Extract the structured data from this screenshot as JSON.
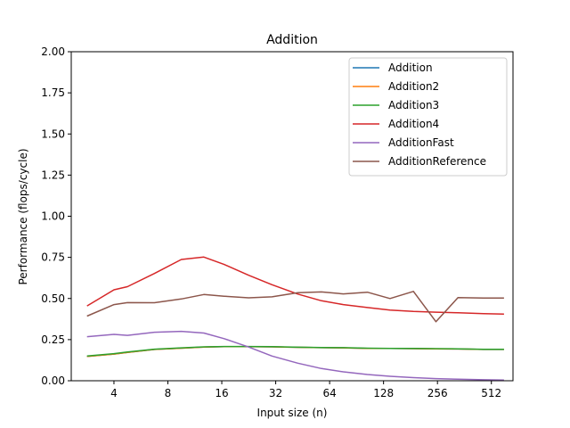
{
  "chart_data": {
    "type": "line",
    "title": "Addition",
    "xlabel": "Input size (n)",
    "ylabel": "Performance (flops/cycle)",
    "x_scale": "log2",
    "xlim": [
      2.31,
      676
    ],
    "ylim": [
      0,
      2.0
    ],
    "x_ticks": [
      4,
      8,
      16,
      32,
      64,
      128,
      256,
      512
    ],
    "x_tick_labels": [
      "4",
      "8",
      "16",
      "32",
      "64",
      "128",
      "256",
      "512"
    ],
    "y_ticks": [
      0.0,
      0.25,
      0.5,
      0.75,
      1.0,
      1.25,
      1.5,
      1.75,
      2.0
    ],
    "y_tick_labels": [
      "0.00",
      "0.25",
      "0.50",
      "0.75",
      "1.00",
      "1.25",
      "1.50",
      "1.75",
      "2.00"
    ],
    "grid": false,
    "legend_position": "top-right",
    "x": [
      2.83,
      4,
      4.76,
      6.73,
      9.51,
      12.7,
      16.5,
      22.6,
      30.5,
      42.5,
      57.6,
      76.3,
      104,
      139,
      188,
      251,
      333,
      463,
      602
    ],
    "series": [
      {
        "name": "Addition",
        "color": "#1f77b4",
        "values": [
          0.148,
          0.162,
          0.172,
          0.19,
          0.198,
          0.205,
          0.207,
          0.207,
          0.206,
          0.203,
          0.201,
          0.2,
          0.197,
          0.196,
          0.195,
          0.194,
          0.193,
          0.19,
          0.19
        ]
      },
      {
        "name": "Addition2",
        "color": "#ff7f0e",
        "values": [
          0.148,
          0.162,
          0.172,
          0.19,
          0.198,
          0.205,
          0.207,
          0.207,
          0.206,
          0.203,
          0.201,
          0.2,
          0.197,
          0.196,
          0.195,
          0.194,
          0.193,
          0.19,
          0.19
        ]
      },
      {
        "name": "Addition3",
        "color": "#2ca02c",
        "values": [
          0.15,
          0.165,
          0.175,
          0.192,
          0.2,
          0.206,
          0.208,
          0.208,
          0.207,
          0.204,
          0.202,
          0.201,
          0.198,
          0.197,
          0.196,
          0.195,
          0.194,
          0.191,
          0.191
        ]
      },
      {
        "name": "Addition4",
        "color": "#d62728",
        "values": [
          0.455,
          0.553,
          0.572,
          0.652,
          0.737,
          0.752,
          0.707,
          0.641,
          0.584,
          0.527,
          0.486,
          0.463,
          0.445,
          0.429,
          0.421,
          0.417,
          0.413,
          0.408,
          0.405
        ]
      },
      {
        "name": "AdditionFast",
        "color": "#9467bd",
        "values": [
          0.268,
          0.282,
          0.276,
          0.295,
          0.3,
          0.29,
          0.256,
          0.205,
          0.15,
          0.107,
          0.074,
          0.054,
          0.038,
          0.027,
          0.019,
          0.013,
          0.009,
          0.006,
          0.004
        ]
      },
      {
        "name": "AdditionReference",
        "color": "#8c564b",
        "values": [
          0.393,
          0.463,
          0.475,
          0.474,
          0.497,
          0.524,
          0.514,
          0.504,
          0.51,
          0.535,
          0.54,
          0.528,
          0.538,
          0.5,
          0.543,
          0.359,
          0.505,
          0.503,
          0.503
        ]
      }
    ]
  }
}
